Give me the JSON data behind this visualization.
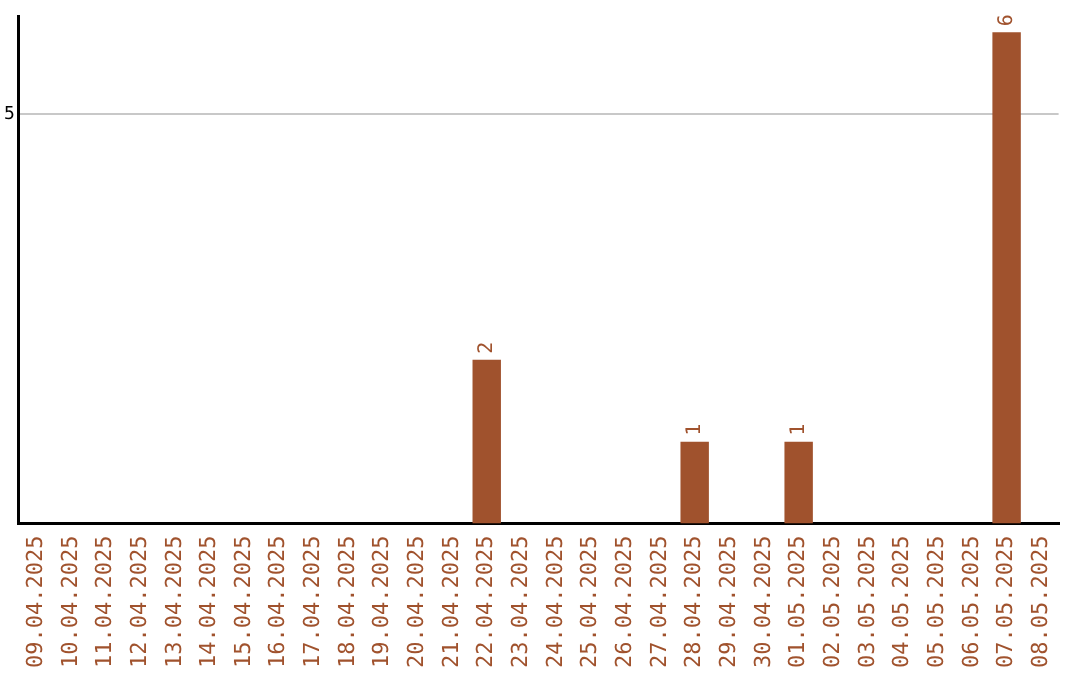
{
  "chart_data": {
    "type": "bar",
    "categories": [
      "09.04.2025",
      "10.04.2025",
      "11.04.2025",
      "12.04.2025",
      "13.04.2025",
      "14.04.2025",
      "15.04.2025",
      "16.04.2025",
      "17.04.2025",
      "18.04.2025",
      "19.04.2025",
      "20.04.2025",
      "21.04.2025",
      "22.04.2025",
      "23.04.2025",
      "24.04.2025",
      "25.04.2025",
      "26.04.2025",
      "27.04.2025",
      "28.04.2025",
      "29.04.2025",
      "30.04.2025",
      "01.05.2025",
      "02.05.2025",
      "03.05.2025",
      "04.05.2025",
      "05.05.2025",
      "06.05.2025",
      "07.05.2025",
      "08.05.2025"
    ],
    "values": [
      null,
      null,
      null,
      null,
      null,
      null,
      null,
      null,
      null,
      null,
      null,
      null,
      null,
      2,
      null,
      null,
      null,
      null,
      null,
      1,
      null,
      null,
      1,
      null,
      null,
      null,
      null,
      null,
      6,
      null
    ],
    "color": "#a0522d",
    "ylim": [
      0,
      6.2
    ],
    "yticks": [
      5
    ],
    "grid": "y",
    "legend": false,
    "data_labels": true
  }
}
